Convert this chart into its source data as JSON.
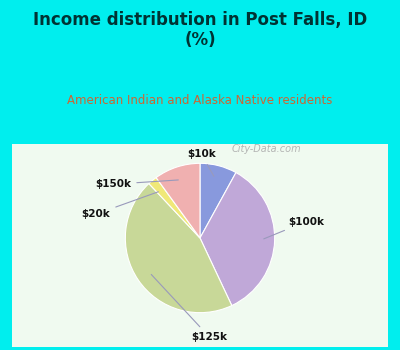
{
  "title": "Income distribution in Post Falls, ID\n(%)",
  "subtitle": "American Indian and Alaska Native residents",
  "slices": [
    {
      "label": "$10k",
      "value": 8,
      "color": "#8899dd"
    },
    {
      "label": "$100k",
      "value": 35,
      "color": "#c0a8d8"
    },
    {
      "label": "$125k",
      "value": 45,
      "color": "#c8d898"
    },
    {
      "label": "$20k",
      "value": 2,
      "color": "#f0e878"
    },
    {
      "label": "$150k",
      "value": 10,
      "color": "#f0b0b0"
    }
  ],
  "title_color": "#003333",
  "subtitle_color": "#cc6633",
  "background_cyan": "#00eeee",
  "chart_bg_color": "#e8f5e8",
  "watermark": "City-Data.com"
}
